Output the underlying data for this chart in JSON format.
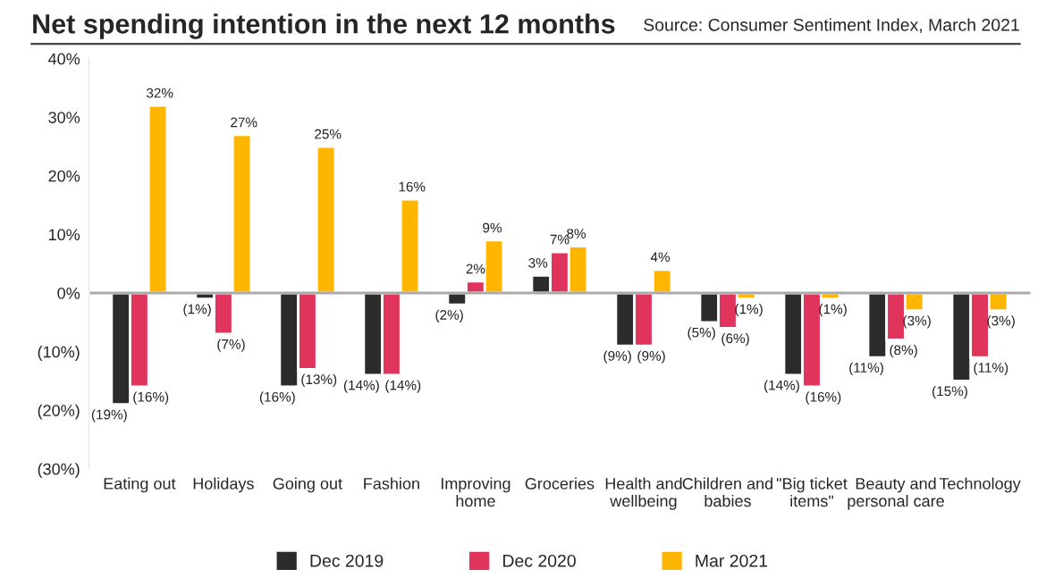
{
  "chart_data": {
    "type": "bar",
    "title": "Net spending intention in the next 12 months",
    "annotations": [
      "Source: Consumer Sentiment Index, March 2021"
    ],
    "categories": [
      "Eating out",
      "Holidays",
      "Going out",
      "Fashion",
      "Improving\nhome",
      "Groceries",
      "Health and\nwellbeing",
      "Children and\nbabies",
      "\"Big ticket\nitems\"",
      "Beauty and\npersonal care",
      "Technology"
    ],
    "series": [
      {
        "name": "Dec 2019",
        "color": "#2b2b2b",
        "values": [
          -19,
          -1,
          -16,
          -14,
          -2,
          3,
          -9,
          -5,
          -14,
          -11,
          -15
        ],
        "value_labels": [
          "(19%)",
          "(1%)",
          "(16%)",
          "(14%)",
          "(2%)",
          "3%",
          "(9%)",
          "(5%)",
          "(14%)",
          "(11%)",
          "(15%)"
        ]
      },
      {
        "name": "Dec 2020",
        "color": "#e0345c",
        "values": [
          -16,
          -7,
          -13,
          -14,
          2,
          7,
          -9,
          -6,
          -16,
          -8,
          -11
        ],
        "value_labels": [
          "(16%)",
          "(7%)",
          "(13%)",
          "(14%)",
          "2%",
          "7%",
          "(9%)",
          "(6%)",
          "(16%)",
          "(8%)",
          "(11%)"
        ]
      },
      {
        "name": "Mar 2021",
        "color": "#ffb600",
        "values": [
          32,
          27,
          25,
          16,
          9,
          8,
          4,
          -1,
          -1,
          -3,
          -3
        ],
        "value_labels": [
          "32%",
          "27%",
          "25%",
          "16%",
          "9%",
          "8%",
          "4%",
          "(1%)",
          "(1%)",
          "(3%)",
          "(3%)"
        ]
      }
    ],
    "ylim": [
      -30,
      40
    ],
    "yticks": [
      {
        "value": -30,
        "label": "(30%)"
      },
      {
        "value": -20,
        "label": "(20%)"
      },
      {
        "value": -10,
        "label": "(10%)"
      },
      {
        "value": 0,
        "label": "0%"
      },
      {
        "value": 10,
        "label": "10%"
      },
      {
        "value": 20,
        "label": "20%"
      },
      {
        "value": 30,
        "label": "30%"
      },
      {
        "value": 40,
        "label": "40%"
      }
    ],
    "ref_lines": [
      {
        "axis": "y",
        "value": 0,
        "color": "#aaaaaa"
      }
    ],
    "grid": false,
    "legend": "bottom"
  }
}
